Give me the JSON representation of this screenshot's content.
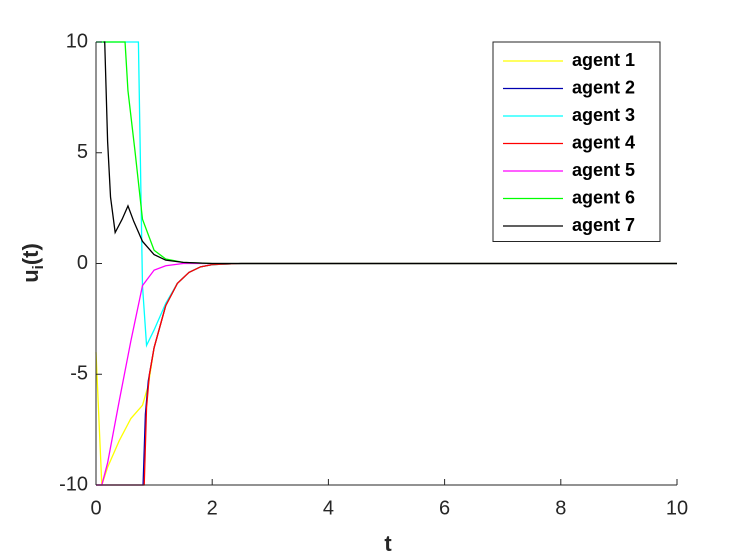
{
  "chart_data": {
    "type": "line",
    "xlabel": "t",
    "ylabel": [
      "u",
      "i",
      "(t)"
    ],
    "xlim": [
      0,
      10
    ],
    "ylim": [
      -10,
      10
    ],
    "xticks": [
      0,
      2,
      4,
      6,
      8,
      10
    ],
    "yticks": [
      -10,
      -5,
      0,
      5,
      10
    ],
    "legend": "top-right",
    "series": [
      {
        "name": "agent 1",
        "color": "#ffff00",
        "x": [
          0,
          0.1,
          0.2,
          0.4,
          0.6,
          0.8,
          0.9,
          1.0,
          1.2,
          1.4,
          1.6,
          1.8,
          2.0,
          2.5,
          10
        ],
        "values": [
          -4,
          -10,
          -9.2,
          -8,
          -7,
          -6.4,
          -5.5,
          -3.8,
          -1.9,
          -0.9,
          -0.4,
          -0.15,
          -0.05,
          0,
          0
        ]
      },
      {
        "name": "agent 2",
        "color": "#0000b0",
        "x": [
          0,
          0.81,
          0.85,
          0.9,
          1.0,
          1.2,
          1.4,
          1.6,
          1.8,
          2.0,
          2.5,
          10
        ],
        "values": [
          -10,
          -10,
          -6.8,
          -5.3,
          -3.8,
          -1.9,
          -0.9,
          -0.4,
          -0.15,
          -0.05,
          0,
          0
        ]
      },
      {
        "name": "agent 3",
        "color": "#00ffff",
        "x": [
          0,
          0.73,
          0.8,
          0.87,
          1.0,
          1.2,
          1.4,
          1.6,
          1.8,
          2.0,
          2.5,
          10
        ],
        "values": [
          10,
          10,
          -1,
          -3.7,
          -3.0,
          -1.8,
          -0.9,
          -0.4,
          -0.15,
          -0.05,
          0,
          0
        ]
      },
      {
        "name": "agent 4",
        "color": "#ff0000",
        "x": [
          0,
          0.83,
          0.87,
          0.92,
          1.0,
          1.2,
          1.4,
          1.6,
          1.8,
          2.0,
          2.5,
          10
        ],
        "values": [
          -10,
          -10,
          -6.5,
          -5.0,
          -3.8,
          -1.9,
          -0.9,
          -0.4,
          -0.15,
          -0.05,
          0,
          0
        ]
      },
      {
        "name": "agent 5",
        "color": "#ff00ff",
        "x": [
          0,
          0.1,
          0.2,
          0.4,
          0.6,
          0.8,
          1.0,
          1.2,
          1.5,
          10
        ],
        "values": [
          -10,
          -10,
          -9,
          -6.2,
          -3.5,
          -1.0,
          -0.3,
          -0.1,
          0,
          0
        ]
      },
      {
        "name": "agent 6",
        "color": "#00ff00",
        "x": [
          0,
          0.5,
          0.55,
          0.67,
          0.8,
          1.0,
          1.2,
          1.5,
          2.0,
          10
        ],
        "values": [
          10,
          10,
          7.8,
          5.1,
          2.0,
          0.6,
          0.2,
          0.05,
          0,
          0
        ]
      },
      {
        "name": "agent 7",
        "color": "#000000",
        "x": [
          0.13,
          0.15,
          0.2,
          0.25,
          0.33,
          0.45,
          0.55,
          0.65,
          0.8,
          1.0,
          1.2,
          1.5,
          2.0,
          10
        ],
        "values": [
          10,
          10,
          5.5,
          3,
          1.4,
          2.0,
          2.6,
          1.9,
          1.0,
          0.4,
          0.15,
          0.05,
          0,
          0
        ]
      }
    ]
  }
}
